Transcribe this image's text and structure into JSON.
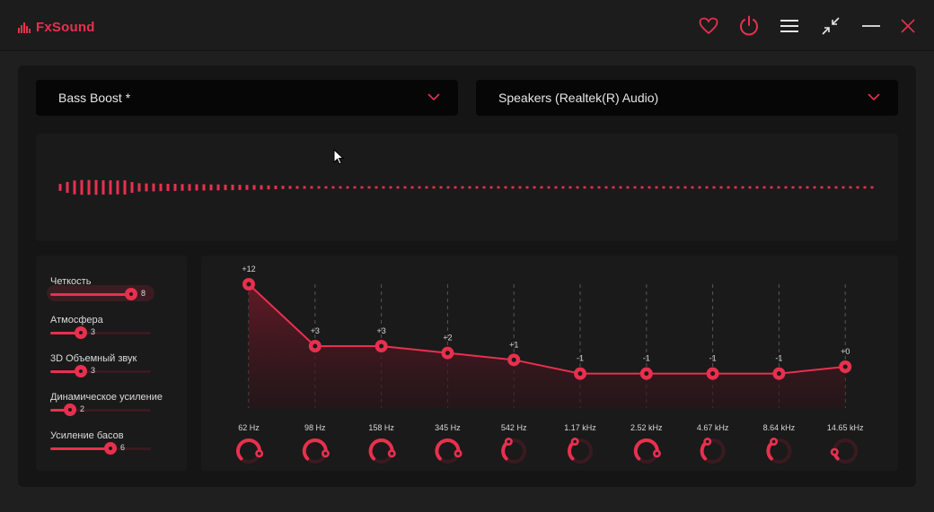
{
  "app": {
    "name": "FxSound"
  },
  "accent": "#e8304e",
  "titlebar_icons": [
    "heart-icon",
    "power-icon",
    "menu-icon",
    "minimize-window-icon",
    "minimize-icon",
    "close-icon"
  ],
  "preset": {
    "label": "Bass Boost *"
  },
  "output": {
    "label": "Speakers (Realtek(R) Audio)"
  },
  "effects": [
    {
      "label": "Четкость",
      "value": "8",
      "level": 8
    },
    {
      "label": "Атмосфера",
      "value": "3",
      "level": 3
    },
    {
      "label": "3D Объемный звук",
      "value": "3",
      "level": 3
    },
    {
      "label": "Динамическое усиление",
      "value": "2",
      "level": 2
    },
    {
      "label": "Усиление басов",
      "value": "6",
      "level": 6
    }
  ],
  "eq": {
    "bands": [
      {
        "freq": "62 Hz",
        "gain": 12,
        "gain_label": "+12",
        "knob": 0.72
      },
      {
        "freq": "98 Hz",
        "gain": 3,
        "gain_label": "+3",
        "knob": 0.72
      },
      {
        "freq": "158 Hz",
        "gain": 3,
        "gain_label": "+3",
        "knob": 0.72
      },
      {
        "freq": "345 Hz",
        "gain": 2,
        "gain_label": "+2",
        "knob": 0.72
      },
      {
        "freq": "542 Hz",
        "gain": 1,
        "gain_label": "+1",
        "knob": 0.32
      },
      {
        "freq": "1.17 kHz",
        "gain": -1,
        "gain_label": "-1",
        "knob": 0.32
      },
      {
        "freq": "2.52 kHz",
        "gain": -1,
        "gain_label": "-1",
        "knob": 0.72
      },
      {
        "freq": "4.67 kHz",
        "gain": -1,
        "gain_label": "-1",
        "knob": 0.32
      },
      {
        "freq": "8.64 kHz",
        "gain": -1,
        "gain_label": "-1",
        "knob": 0.32
      },
      {
        "freq": "14.65 kHz",
        "gain": 0,
        "gain_label": "+0",
        "knob": 0.12
      }
    ]
  },
  "spectrum_levels": [
    0.35,
    0.55,
    0.7,
    0.75,
    0.75,
    0.75,
    0.72,
    0.72,
    0.7,
    0.72,
    0.55,
    0.42,
    0.4,
    0.4,
    0.38,
    0.36,
    0.36,
    0.34,
    0.34,
    0.32,
    0.32,
    0.3,
    0.3,
    0.28,
    0.28,
    0.26,
    0.25,
    0.24,
    0.22,
    0.2,
    0.18,
    0.16,
    0.15,
    0.14,
    0.14,
    0.13,
    0.13,
    0.12,
    0.12,
    0.12,
    0.12,
    0.12,
    0.12,
    0.12,
    0.12,
    0.12,
    0.12,
    0.12,
    0.12,
    0.12,
    0.12,
    0.12,
    0.12,
    0.12,
    0.12,
    0.12,
    0.12,
    0.12,
    0.12,
    0.12,
    0.12,
    0.12,
    0.12,
    0.12,
    0.12,
    0.12,
    0.12,
    0.12,
    0.12,
    0.12,
    0.12,
    0.12,
    0.12,
    0.12,
    0.12,
    0.12,
    0.12,
    0.12,
    0.12,
    0.12,
    0.12,
    0.12,
    0.12,
    0.12,
    0.12,
    0.12,
    0.12,
    0.12,
    0.12,
    0.12,
    0.12,
    0.12,
    0.12,
    0.12,
    0.12,
    0.12,
    0.12,
    0.12,
    0.12,
    0.12,
    0.12,
    0.12,
    0.12,
    0.12,
    0.12,
    0.12,
    0.12,
    0.12,
    0.12,
    0.12,
    0.12,
    0.12,
    0.12,
    0.12
  ]
}
